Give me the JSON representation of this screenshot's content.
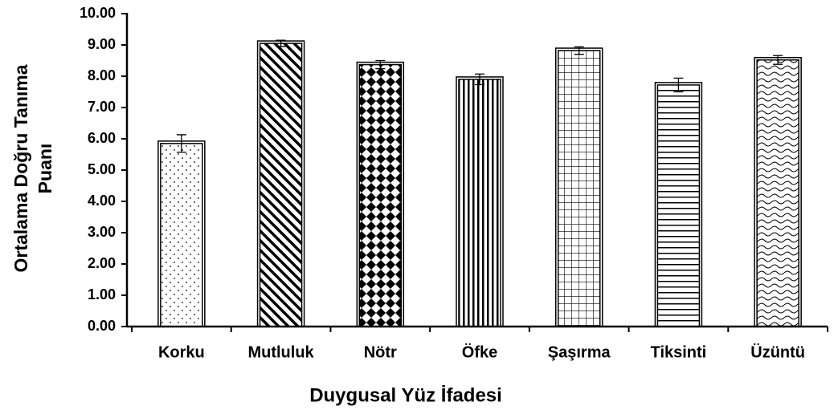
{
  "chart_data": {
    "type": "bar",
    "x_label": "Duygusal Yüz İfadesi",
    "y_label": [
      "Ortalama Doğru Tanıma",
      "Puanı"
    ],
    "categories": [
      "Korku",
      "Mutluluk",
      "Nötr",
      "Öfke",
      "Şaşırma",
      "Tiksinti",
      "Üzüntü"
    ],
    "values": [
      5.85,
      9.05,
      8.37,
      7.9,
      8.82,
      7.72,
      8.52
    ],
    "errors": [
      0.28,
      0.1,
      0.13,
      0.17,
      0.12,
      0.22,
      0.14
    ],
    "patterns": [
      "dots",
      "diagonal",
      "diamonds",
      "vertical",
      "grid",
      "horizontal",
      "waves"
    ],
    "color": "#000000",
    "ylim": [
      0,
      10
    ],
    "yticks": [
      {
        "value": 0,
        "label": "0.00"
      },
      {
        "value": 1,
        "label": "1.00"
      },
      {
        "value": 2,
        "label": "2.00"
      },
      {
        "value": 3,
        "label": "3.00"
      },
      {
        "value": 4,
        "label": "4.00"
      },
      {
        "value": 5,
        "label": "5.00"
      },
      {
        "value": 6,
        "label": "6.00"
      },
      {
        "value": 7,
        "label": "7.00"
      },
      {
        "value": 8,
        "label": "8.00"
      },
      {
        "value": 9,
        "label": "9.00"
      },
      {
        "value": 10,
        "label": "10.00"
      }
    ],
    "grid": false
  }
}
